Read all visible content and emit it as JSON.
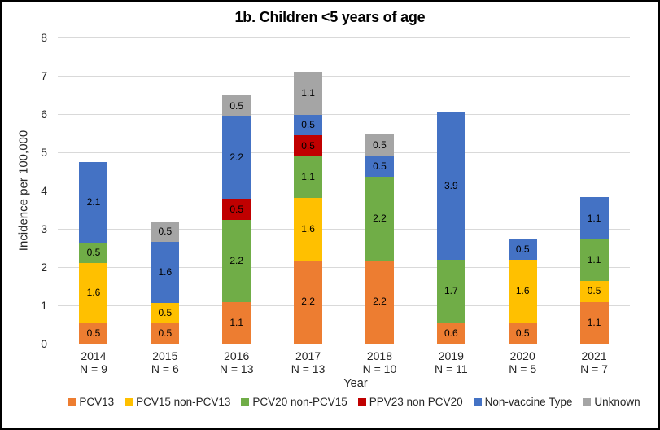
{
  "figure": {
    "background": "#FFFFFF",
    "border_color": "#000000"
  },
  "chart_data": {
    "type": "bar",
    "stacked": true,
    "title": "1b. Children <5 years of age",
    "xlabel": "Year",
    "ylabel": "Incidence per 100,000",
    "ylim": [
      0,
      8
    ],
    "ytick_interval": 1,
    "yticks": [
      0,
      1,
      2,
      3,
      4,
      5,
      6,
      7,
      8
    ],
    "grid": true,
    "legend_position": "bottom",
    "categories": [
      "2014",
      "2015",
      "2016",
      "2017",
      "2018",
      "2019",
      "2020",
      "2021"
    ],
    "category_sublabels": [
      "N = 9",
      "N = 6",
      "N = 13",
      "N = 13",
      "N = 10",
      "N = 11",
      "N = 5",
      "N = 7"
    ],
    "series": [
      {
        "name": "PCV13",
        "color": "#ED7D31",
        "values": [
          0.53,
          0.53,
          1.08,
          2.18,
          2.18,
          0.55,
          0.55,
          1.09
        ],
        "labels": [
          "0.5",
          "0.5",
          "1.1",
          "2.2",
          "2.2",
          "0.6",
          "0.5",
          "1.1"
        ]
      },
      {
        "name": "PCV15 non-PCV13",
        "color": "#FFC000",
        "values": [
          1.58,
          0.53,
          0,
          1.63,
          0,
          0,
          1.64,
          0.55
        ],
        "labels": [
          "1.6",
          "0.5",
          "",
          "1.6",
          "",
          "",
          "1.6",
          "0.5"
        ]
      },
      {
        "name": "PCV20 non-PCV15",
        "color": "#70AD47",
        "values": [
          0.53,
          0,
          2.16,
          1.09,
          2.18,
          1.65,
          0,
          1.09
        ],
        "labels": [
          "0.5",
          "",
          "2.2",
          "1.1",
          "2.2",
          "1.7",
          "",
          "1.1"
        ]
      },
      {
        "name": "PPV23 non PCV20",
        "color": "#C00000",
        "values": [
          0,
          0,
          0.54,
          0.54,
          0,
          0,
          0,
          0
        ],
        "labels": [
          "",
          "",
          "0.5",
          "0.5",
          "",
          "",
          "",
          ""
        ]
      },
      {
        "name": "Non-vaccine Type",
        "color": "#4472C4",
        "values": [
          2.11,
          1.6,
          2.16,
          0.54,
          0.55,
          3.85,
          0.55,
          1.09
        ],
        "labels": [
          "2.1",
          "1.6",
          "2.2",
          "0.5",
          "0.5",
          "3.9",
          "0.5",
          "1.1"
        ]
      },
      {
        "name": "Unknown",
        "color": "#A5A5A5",
        "values": [
          0,
          0.53,
          0.54,
          1.11,
          0.55,
          0,
          0,
          0
        ],
        "labels": [
          "",
          "0.5",
          "0.5",
          "1.1",
          "0.5",
          "",
          "",
          ""
        ]
      }
    ]
  }
}
